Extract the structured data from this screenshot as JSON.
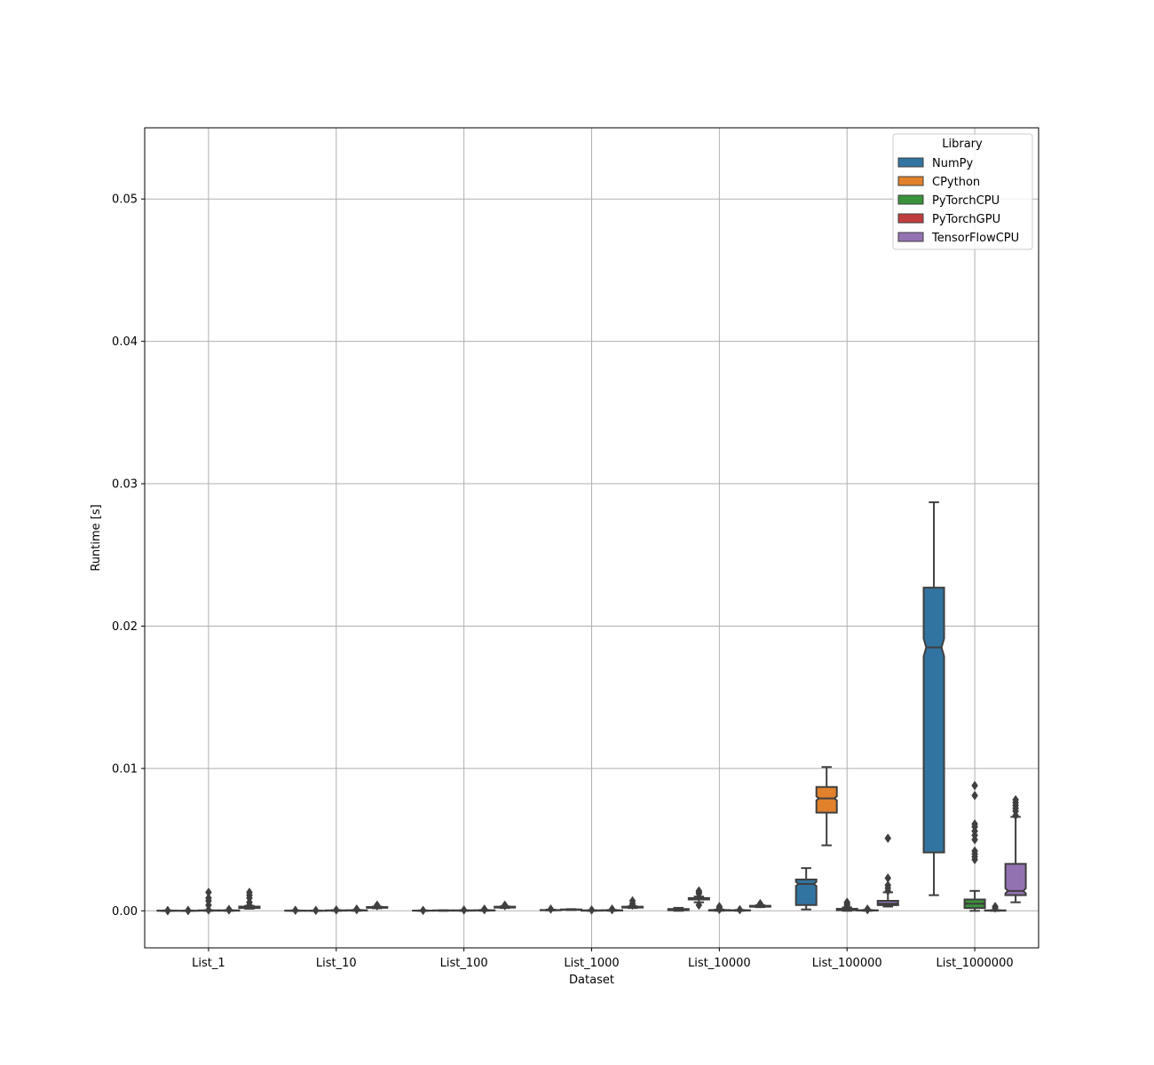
{
  "chart_data": {
    "type": "box",
    "xlabel": "Dataset",
    "ylabel": "Runtime [s]",
    "ylim": [
      -0.0026,
      0.055
    ],
    "yticks": [
      0.0,
      0.01,
      0.02,
      0.03,
      0.04,
      0.05
    ],
    "ytick_labels": [
      "0.00",
      "0.01",
      "0.02",
      "0.03",
      "0.04",
      "0.05"
    ],
    "grid": true,
    "legend": {
      "title": "Library",
      "placement": "top-right"
    },
    "categories": [
      "List_1",
      "List_10",
      "List_100",
      "List_1000",
      "List_10000",
      "List_100000",
      "List_1000000"
    ],
    "series": [
      {
        "name": "NumPy",
        "color": "#3274a1",
        "boxes": [
          {
            "whislo": 0.0,
            "q1": 0.0,
            "med": 0.0,
            "q3": 2e-05,
            "whishi": 3e-05,
            "fliers": [
              1e-05,
              2e-05
            ]
          },
          {
            "whislo": 0.0,
            "q1": 0.0,
            "med": 1e-05,
            "q3": 2e-05,
            "whishi": 3e-05,
            "fliers": [
              4e-05
            ]
          },
          {
            "whislo": 0.0,
            "q1": 1e-05,
            "med": 1e-05,
            "q3": 2e-05,
            "whishi": 3e-05,
            "fliers": [
              3e-05
            ]
          },
          {
            "whislo": 3e-05,
            "q1": 4e-05,
            "med": 5e-05,
            "q3": 6e-05,
            "whishi": 8e-05,
            "fliers": [
              0.00012
            ]
          },
          {
            "whislo": 0.0,
            "q1": 4e-05,
            "med": 9e-05,
            "q3": 0.00013,
            "whishi": 0.00021,
            "fliers": []
          },
          {
            "whislo": 0.0001,
            "q1": 0.00041,
            "med": 0.00189,
            "q3": 0.0022,
            "whishi": 0.003,
            "fliers": []
          },
          {
            "whislo": 0.0011,
            "q1": 0.0041,
            "med": 0.0185,
            "q3": 0.0227,
            "whishi": 0.0287,
            "fliers": []
          }
        ]
      },
      {
        "name": "CPython",
        "color": "#e1812c",
        "boxes": [
          {
            "whislo": 0.0,
            "q1": 0.0,
            "med": 0.0,
            "q3": 1e-05,
            "whishi": 2e-05,
            "fliers": [
              2e-05,
              3e-05
            ]
          },
          {
            "whislo": 0.0,
            "q1": 0.0,
            "med": 1e-05,
            "q3": 1e-05,
            "whishi": 2e-05,
            "fliers": [
              3e-05
            ]
          },
          {
            "whislo": 0.0,
            "q1": 1e-05,
            "med": 2e-05,
            "q3": 3e-05,
            "whishi": 4e-05,
            "fliers": []
          },
          {
            "whislo": 6e-05,
            "q1": 8e-05,
            "med": 9e-05,
            "q3": 0.0001,
            "whishi": 0.00012,
            "fliers": []
          },
          {
            "whislo": 0.0006,
            "q1": 0.0008,
            "med": 0.00085,
            "q3": 0.0009,
            "whishi": 0.001,
            "fliers": [
              0.0012,
              0.0013,
              0.0014,
              0.0004
            ]
          },
          {
            "whislo": 0.0046,
            "q1": 0.0069,
            "med": 0.0079,
            "q3": 0.0087,
            "whishi": 0.0101,
            "fliers": []
          },
          null
        ]
      },
      {
        "name": "PyTorchCPU",
        "color": "#3a923a",
        "boxes": [
          {
            "whislo": 0.0,
            "q1": 1e-05,
            "med": 2e-05,
            "q3": 3e-05,
            "whishi": 4e-05,
            "fliers": [
              6e-05,
              0.0004,
              0.0007,
              0.0009,
              0.0013
            ]
          },
          {
            "whislo": 0.0,
            "q1": 1e-05,
            "med": 2e-05,
            "q3": 3e-05,
            "whishi": 5e-05,
            "fliers": [
              6e-05
            ]
          },
          {
            "whislo": 0.0,
            "q1": 1e-05,
            "med": 2e-05,
            "q3": 3e-05,
            "whishi": 4e-05,
            "fliers": [
              6e-05
            ]
          },
          {
            "whislo": 0.0,
            "q1": 1e-05,
            "med": 2e-05,
            "q3": 3e-05,
            "whishi": 4e-05,
            "fliers": [
              6e-05
            ]
          },
          {
            "whislo": 0.0,
            "q1": 2e-05,
            "med": 4e-05,
            "q3": 6e-05,
            "whishi": 9e-05,
            "fliers": [
              0.0001,
              0.0002,
              0.0003
            ]
          },
          {
            "whislo": 0.0,
            "q1": 4e-05,
            "med": 8e-05,
            "q3": 0.00014,
            "whishi": 0.00024,
            "fliers": [
              0.0003,
              0.0004,
              0.0005,
              0.0006
            ]
          },
          {
            "whislo": 0.0,
            "q1": 0.0002,
            "med": 0.0005,
            "q3": 0.0008,
            "whishi": 0.0014,
            "fliers": [
              0.0036,
              0.0038,
              0.004,
              0.0042,
              0.005,
              0.0053,
              0.0056,
              0.0059,
              0.0061,
              0.0081,
              0.0088
            ]
          }
        ]
      },
      {
        "name": "PyTorchGPU",
        "color": "#c03d3e",
        "boxes": [
          {
            "whislo": 0.0,
            "q1": 1e-05,
            "med": 2e-05,
            "q3": 3e-05,
            "whishi": 4e-05,
            "fliers": [
              6e-05,
              0.0001
            ]
          },
          {
            "whislo": 0.0,
            "q1": 2e-05,
            "med": 3e-05,
            "q3": 4e-05,
            "whishi": 6e-05,
            "fliers": [
              8e-05,
              0.00012
            ]
          },
          {
            "whislo": 0.0,
            "q1": 2e-05,
            "med": 3e-05,
            "q3": 4e-05,
            "whishi": 6e-05,
            "fliers": [
              8e-05,
              0.00012
            ]
          },
          {
            "whislo": 0.0,
            "q1": 2e-05,
            "med": 3e-05,
            "q3": 4e-05,
            "whishi": 6e-05,
            "fliers": [
              8e-05,
              0.00012
            ]
          },
          {
            "whislo": 0.0,
            "q1": 2e-05,
            "med": 3e-05,
            "q3": 4e-05,
            "whishi": 6e-05,
            "fliers": [
              8e-05
            ]
          },
          {
            "whislo": 0.0,
            "q1": 2e-05,
            "med": 3e-05,
            "q3": 4e-05,
            "whishi": 6e-05,
            "fliers": [
              8e-05,
              0.00012
            ]
          },
          {
            "whislo": 0.0,
            "q1": 1e-05,
            "med": 2e-05,
            "q3": 3e-05,
            "whishi": 5e-05,
            "fliers": [
              0.0002,
              0.0003
            ]
          }
        ]
      },
      {
        "name": "TensorFlowCPU",
        "color": "#9372b2",
        "boxes": [
          {
            "whislo": 0.00015,
            "q1": 0.0002,
            "med": 0.00025,
            "q3": 0.0003,
            "whishi": 0.00035,
            "fliers": [
              0.0004,
              0.0006,
              0.0009,
              0.0011,
              0.0013
            ]
          },
          {
            "whislo": 0.00018,
            "q1": 0.00021,
            "med": 0.00024,
            "q3": 0.00027,
            "whishi": 0.0003,
            "fliers": [
              0.00035,
              0.0004
            ]
          },
          {
            "whislo": 0.0002,
            "q1": 0.00023,
            "med": 0.00026,
            "q3": 0.00029,
            "whishi": 0.00032,
            "fliers": [
              0.00036,
              0.0004
            ]
          },
          {
            "whislo": 0.0002,
            "q1": 0.00023,
            "med": 0.00026,
            "q3": 0.00029,
            "whishi": 0.00032,
            "fliers": [
              0.0004,
              0.0005,
              0.0007
            ]
          },
          {
            "whislo": 0.00026,
            "q1": 0.00029,
            "med": 0.00032,
            "q3": 0.00035,
            "whishi": 0.0004,
            "fliers": [
              0.0005
            ]
          },
          {
            "whislo": 0.0003,
            "q1": 0.0004,
            "med": 0.0005,
            "q3": 0.0007,
            "whishi": 0.0013,
            "fliers": [
              0.0014,
              0.0016,
              0.0018,
              0.0023,
              0.0051
            ]
          },
          {
            "whislo": 0.0006,
            "q1": 0.0011,
            "med": 0.0014,
            "q3": 0.0033,
            "whishi": 0.0066,
            "fliers": [
              0.0067,
              0.007,
              0.0072,
              0.0074,
              0.0076,
              0.0078
            ]
          }
        ]
      }
    ]
  }
}
